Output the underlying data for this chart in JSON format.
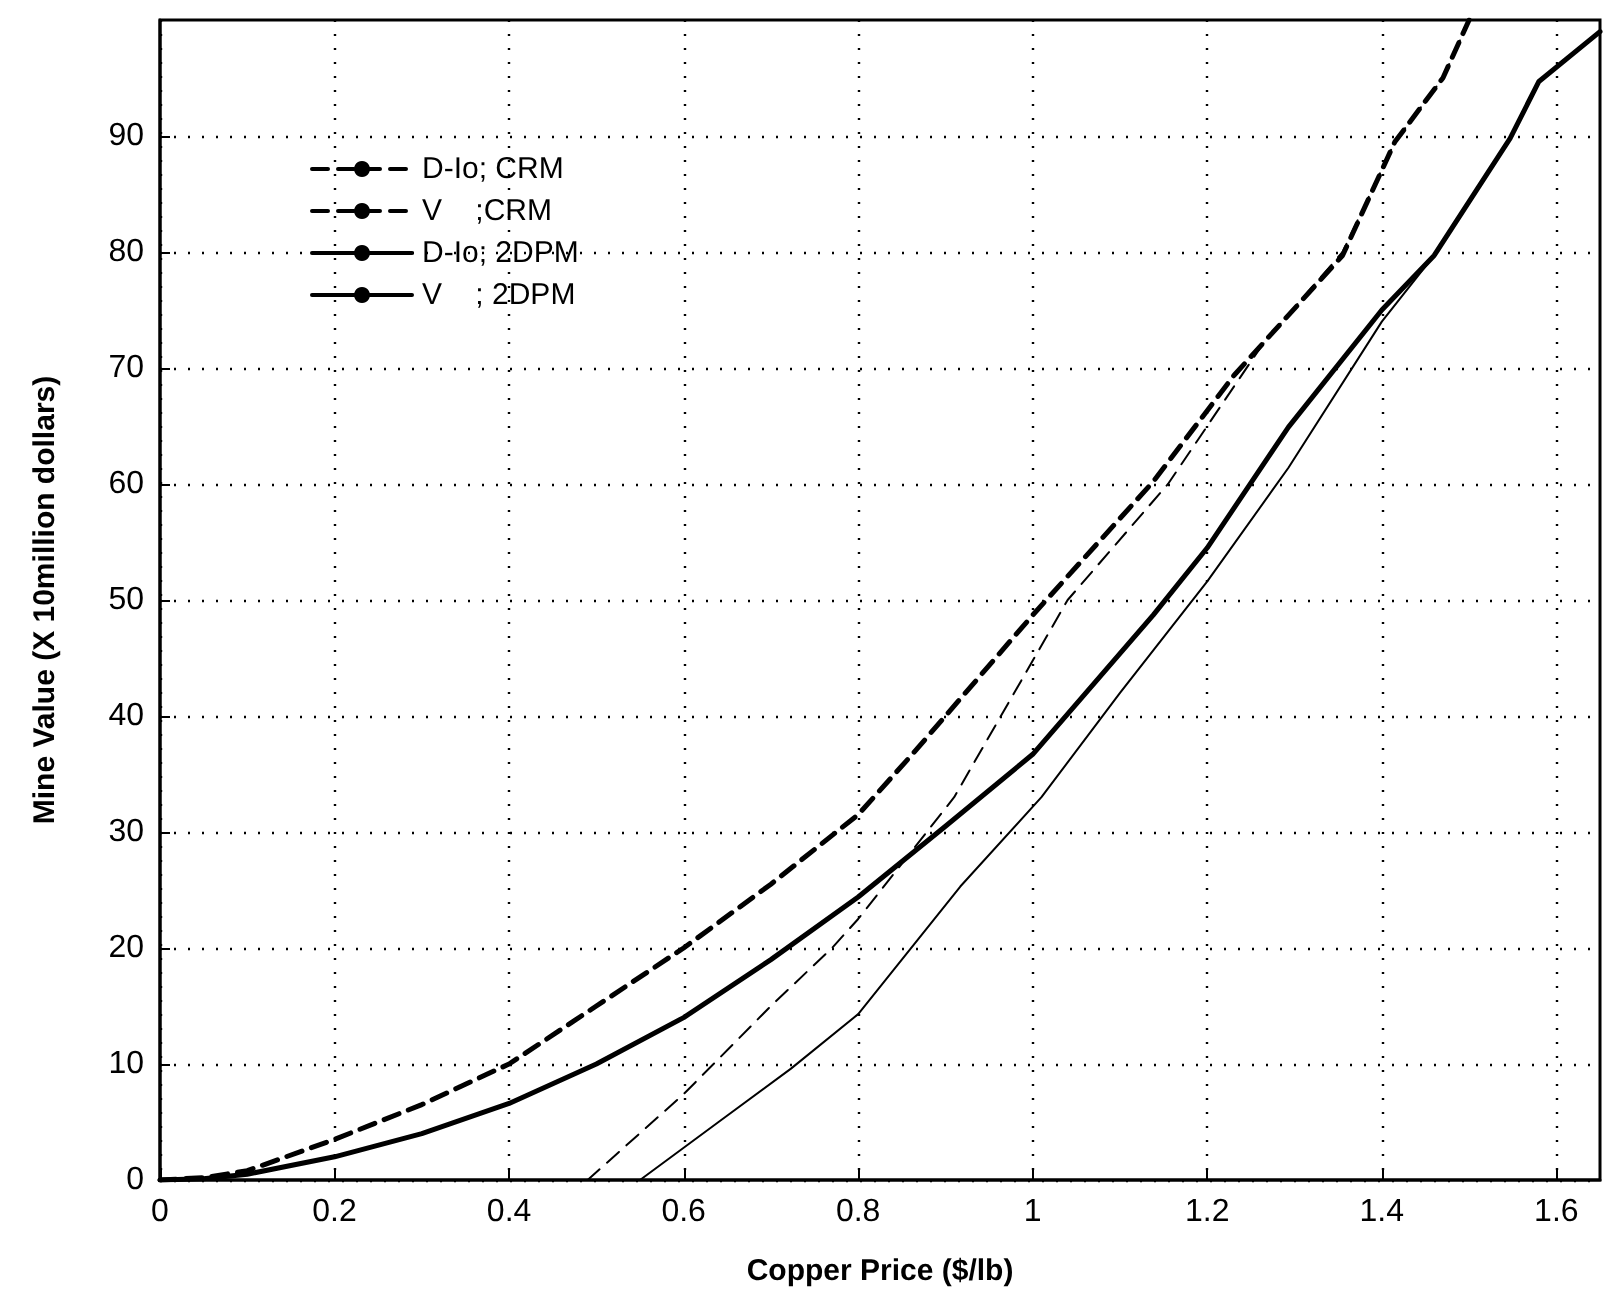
{
  "chart_data": {
    "type": "line",
    "xlabel": "Copper Price ($/lb)",
    "ylabel": "Mine Value (X 10million dollars)",
    "xlim": [
      0,
      1.65
    ],
    "xticks": [
      0,
      0.2,
      0.4,
      0.6,
      0.8,
      1,
      1.2,
      1.4,
      1.6
    ],
    "ylim": [
      0,
      100
    ],
    "yticks": [
      0,
      10,
      20,
      30,
      40,
      50,
      60,
      70,
      80,
      90
    ],
    "grid": true,
    "legend": "top left",
    "marker": "none",
    "series": [
      {
        "name": "D-Io; CRM",
        "color": "#000000",
        "line_style": "dashed",
        "x": [
          0.49,
          0.6,
          0.7,
          0.77,
          0.8,
          0.91,
          1.04,
          1.155,
          1.263,
          1.355,
          1.415,
          1.47,
          1.5
        ],
        "values": [
          0,
          7.4,
          15,
          20,
          22.5,
          33,
          50,
          60,
          72,
          80,
          89.5,
          95,
          100
        ]
      },
      {
        "name": "V    ;CRM",
        "color": "#000000",
        "line_style": "dashed",
        "x": [
          0,
          0.05,
          0.1,
          0.2,
          0.3,
          0.4,
          0.5,
          0.6,
          0.7,
          0.8,
          0.862,
          1,
          1.138,
          1.231,
          1.355,
          1.415,
          1.47,
          1.5
        ],
        "values": [
          0,
          0.2,
          0.8,
          3.5,
          6.5,
          10,
          15,
          20,
          25.5,
          31.5,
          36.7,
          48.7,
          60.2,
          69.4,
          79.7,
          89.5,
          95,
          100
        ]
      },
      {
        "name": "D-Io; 2DPM",
        "color": "#000000",
        "line_style": "solid",
        "x": [
          0,
          0.05,
          0.1,
          0.2,
          0.3,
          0.4,
          0.5,
          0.6,
          0.7,
          0.8,
          0.9,
          1,
          1.138,
          1.2,
          1.293,
          1.4,
          1.46,
          1.547,
          1.58,
          1.65
        ],
        "values": [
          0,
          0.1,
          0.5,
          2,
          4,
          6.6,
          10,
          14,
          19,
          24.4,
          30.5,
          36.7,
          48.7,
          54.5,
          64.9,
          75,
          79.7,
          89.8,
          94.7,
          99
        ]
      },
      {
        "name": "V    ; 2DPM",
        "color": "#000000",
        "line_style": "solid",
        "x": [
          0.55,
          0.64,
          0.723,
          0.8,
          0.917,
          1.01,
          1.1,
          1.2,
          1.293,
          1.4,
          1.46,
          1.547,
          1.58,
          1.65
        ],
        "values": [
          0,
          5,
          9.6,
          14.3,
          25.3,
          33,
          42,
          51.6,
          61.4,
          74,
          79.7,
          89.8,
          94.7,
          99
        ]
      }
    ]
  }
}
